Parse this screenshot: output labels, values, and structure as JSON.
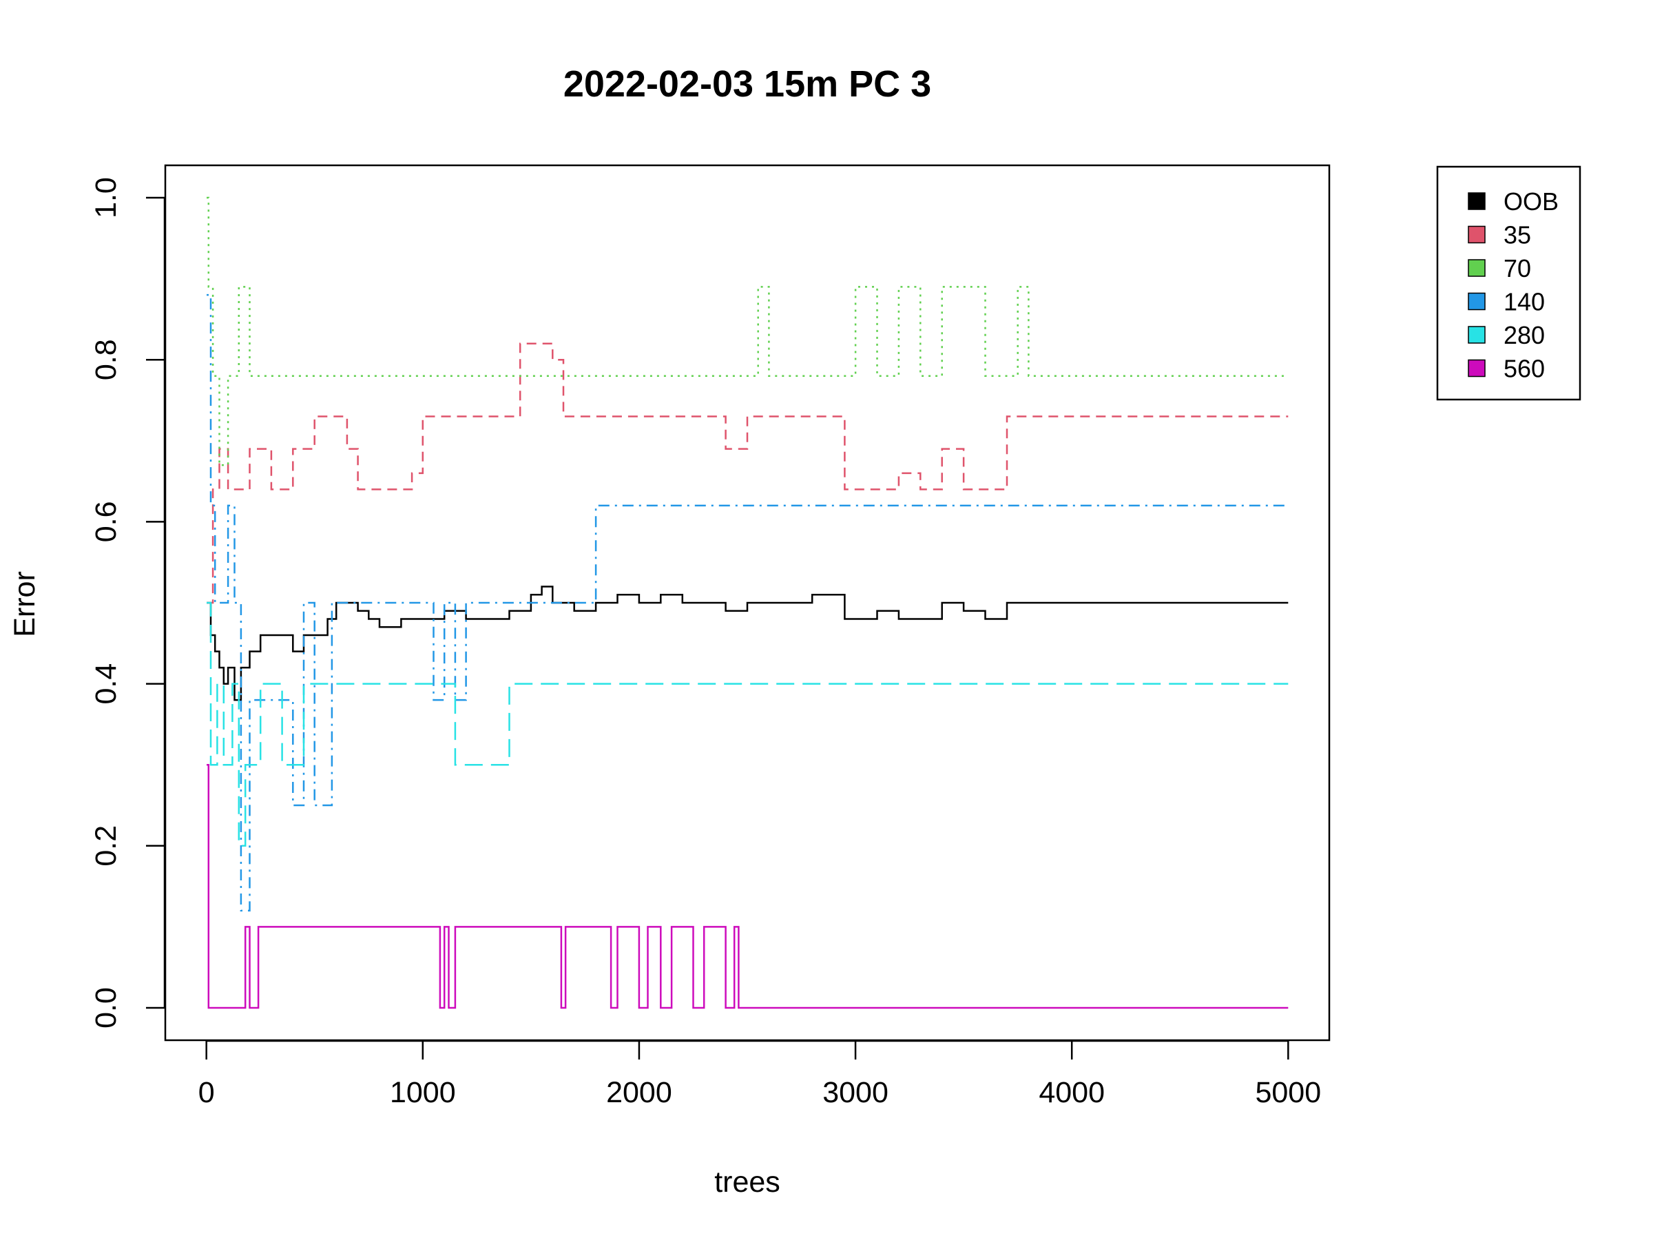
{
  "chart_data": {
    "type": "line",
    "title": "2022-02-03 15m PC 3",
    "xlabel": "trees",
    "ylabel": "Error",
    "xlim": [
      -190,
      5190
    ],
    "ylim": [
      -0.04,
      1.04
    ],
    "x_ticks": [
      0,
      1000,
      2000,
      3000,
      4000,
      5000
    ],
    "x_tick_labels": [
      "0",
      "1000",
      "2000",
      "3000",
      "4000",
      "5000"
    ],
    "y_ticks": [
      0.0,
      0.2,
      0.4,
      0.6,
      0.8,
      1.0
    ],
    "y_tick_labels": [
      "0.0",
      "0.2",
      "0.4",
      "0.6",
      "0.8",
      "1.0"
    ],
    "legend": {
      "placement": "outside-top-right"
    },
    "series": [
      {
        "name": "OOB",
        "color": "#000000",
        "dash": "solid",
        "x": [
          1,
          20,
          40,
          60,
          80,
          100,
          130,
          160,
          200,
          250,
          300,
          400,
          450,
          500,
          560,
          600,
          700,
          750,
          800,
          900,
          1000,
          1100,
          1200,
          1300,
          1400,
          1500,
          1550,
          1600,
          1700,
          1800,
          1900,
          2000,
          2100,
          2200,
          2300,
          2400,
          2500,
          2600,
          2800,
          2950,
          3000,
          3100,
          3200,
          3300,
          3400,
          3500,
          3600,
          3700,
          3800,
          5000
        ],
        "y": [
          0.5,
          0.46,
          0.44,
          0.42,
          0.4,
          0.42,
          0.38,
          0.42,
          0.44,
          0.46,
          0.46,
          0.44,
          0.46,
          0.46,
          0.48,
          0.5,
          0.49,
          0.48,
          0.47,
          0.48,
          0.48,
          0.49,
          0.48,
          0.48,
          0.49,
          0.51,
          0.52,
          0.5,
          0.49,
          0.5,
          0.51,
          0.5,
          0.51,
          0.5,
          0.5,
          0.49,
          0.5,
          0.5,
          0.51,
          0.48,
          0.48,
          0.49,
          0.48,
          0.48,
          0.5,
          0.49,
          0.48,
          0.5,
          0.5,
          0.5
        ]
      },
      {
        "name": "35",
        "color": "#DF536B",
        "dash": "dashed",
        "x": [
          1,
          30,
          60,
          100,
          150,
          200,
          300,
          400,
          500,
          600,
          650,
          700,
          750,
          800,
          900,
          950,
          1000,
          1100,
          1200,
          1300,
          1400,
          1450,
          1500,
          1550,
          1600,
          1650,
          1700,
          1750,
          1800,
          2000,
          2300,
          2400,
          2500,
          2900,
          2950,
          3000,
          3200,
          3300,
          3400,
          3500,
          3600,
          3700,
          3800,
          5000
        ],
        "y": [
          0.5,
          0.64,
          0.69,
          0.64,
          0.64,
          0.69,
          0.64,
          0.69,
          0.73,
          0.73,
          0.69,
          0.64,
          0.64,
          0.64,
          0.64,
          0.66,
          0.73,
          0.73,
          0.73,
          0.73,
          0.73,
          0.82,
          0.82,
          0.82,
          0.8,
          0.73,
          0.73,
          0.73,
          0.73,
          0.73,
          0.73,
          0.69,
          0.73,
          0.73,
          0.64,
          0.64,
          0.66,
          0.64,
          0.69,
          0.64,
          0.64,
          0.73,
          0.73,
          0.73
        ]
      },
      {
        "name": "70",
        "color": "#61D04F",
        "dash": "dotted",
        "x": [
          1,
          10,
          30,
          60,
          100,
          150,
          200,
          500,
          1000,
          2000,
          2500,
          2550,
          2600,
          2900,
          3000,
          3100,
          3200,
          3300,
          3400,
          3500,
          3600,
          3700,
          3750,
          3800,
          5000
        ],
        "y": [
          1.0,
          0.89,
          0.78,
          0.67,
          0.78,
          0.89,
          0.78,
          0.78,
          0.78,
          0.78,
          0.78,
          0.89,
          0.78,
          0.78,
          0.89,
          0.78,
          0.89,
          0.78,
          0.89,
          0.89,
          0.78,
          0.78,
          0.89,
          0.78,
          0.78
        ]
      },
      {
        "name": "140",
        "color": "#2297E6",
        "dash": "dotdash",
        "x": [
          1,
          20,
          40,
          70,
          100,
          130,
          160,
          200,
          250,
          300,
          350,
          400,
          450,
          500,
          550,
          580,
          600,
          700,
          800,
          1000,
          1050,
          1100,
          1150,
          1200,
          1300,
          1500,
          1800,
          1850,
          1900,
          2000,
          5000
        ],
        "y": [
          0.88,
          0.62,
          0.5,
          0.5,
          0.62,
          0.5,
          0.12,
          0.38,
          0.38,
          0.38,
          0.38,
          0.25,
          0.5,
          0.25,
          0.25,
          0.5,
          0.5,
          0.5,
          0.5,
          0.5,
          0.38,
          0.5,
          0.38,
          0.5,
          0.5,
          0.5,
          0.62,
          0.62,
          0.62,
          0.62,
          0.62
        ]
      },
      {
        "name": "280",
        "color": "#28E2E5",
        "dash": "longdash",
        "x": [
          1,
          20,
          50,
          80,
          120,
          150,
          180,
          200,
          250,
          300,
          350,
          400,
          450,
          500,
          600,
          800,
          1000,
          1100,
          1150,
          1200,
          1300,
          1400,
          1500,
          5000
        ],
        "y": [
          0.5,
          0.3,
          0.4,
          0.3,
          0.4,
          0.2,
          0.3,
          0.3,
          0.4,
          0.4,
          0.3,
          0.3,
          0.4,
          0.4,
          0.4,
          0.4,
          0.4,
          0.4,
          0.3,
          0.3,
          0.3,
          0.4,
          0.4,
          0.4
        ]
      },
      {
        "name": "560",
        "color": "#CD0BBC",
        "dash": "solid",
        "x": [
          1,
          10,
          20,
          180,
          200,
          240,
          260,
          1050,
          1080,
          1100,
          1120,
          1150,
          1640,
          1660,
          1870,
          1900,
          2000,
          2040,
          2100,
          2150,
          2200,
          2250,
          2300,
          2400,
          2440,
          2460,
          5000
        ],
        "y": [
          0.3,
          0.0,
          0.0,
          0.1,
          0.0,
          0.1,
          0.1,
          0.1,
          0.0,
          0.1,
          0.0,
          0.1,
          0.0,
          0.1,
          0.0,
          0.1,
          0.0,
          0.1,
          0.0,
          0.1,
          0.1,
          0.0,
          0.1,
          0.0,
          0.1,
          0.0,
          0.0
        ]
      }
    ]
  }
}
